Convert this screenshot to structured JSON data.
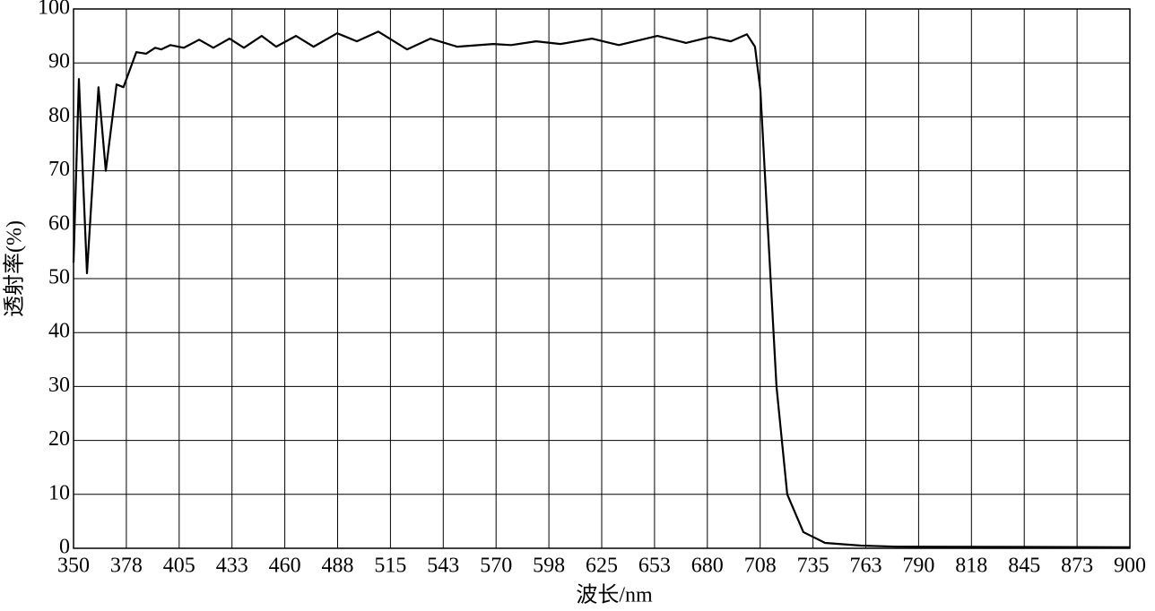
{
  "chart_data": {
    "type": "line",
    "xlabel": "波长/nm",
    "ylabel": "透射率(%)",
    "xlim": [
      350,
      900
    ],
    "xticks": [
      350,
      {
        "value": 377.5,
        "label": "378"
      },
      405,
      {
        "value": 432.5,
        "label": "433"
      },
      460,
      {
        "value": 487.5,
        "label": "488"
      },
      515,
      {
        "value": 542.5,
        "label": "543"
      },
      570,
      {
        "value": 597.5,
        "label": "598"
      },
      625,
      {
        "value": 652.5,
        "label": "653"
      },
      680,
      {
        "value": 707.5,
        "label": "708"
      },
      735,
      {
        "value": 762.5,
        "label": "763"
      },
      790,
      {
        "value": 817.5,
        "label": "818"
      },
      845,
      {
        "value": 872.5,
        "label": "873"
      },
      900
    ],
    "ylim": [
      0,
      100
    ],
    "yticks": [
      0,
      10,
      20,
      30,
      40,
      50,
      60,
      70,
      80,
      90,
      100
    ],
    "grid": true,
    "series": [
      {
        "color": "#000000",
        "x": [
          350,
          352.8,
          357,
          363,
          366.8,
          372.4,
          376,
          382.7,
          387.8,
          392.5,
          395.7,
          400.4,
          407.4,
          415.4,
          422.8,
          431.2,
          438.7,
          448,
          455.5,
          465.8,
          475,
          487.3,
          497.5,
          508.7,
          523.7,
          535.8,
          549.8,
          568.5,
          577.8,
          590.9,
          603.5,
          619.9,
          633.9,
          654,
          668.9,
          681.5,
          692.2,
          700.6,
          704.8,
          707.6,
          711.4,
          716,
          721.6,
          730,
          741.3,
          760,
          778.6,
          900
        ],
        "values": [
          53,
          87,
          51,
          85.5,
          70,
          86,
          85.5,
          92,
          91.7,
          92.8,
          92.5,
          93.3,
          92.8,
          94.3,
          92.8,
          94.5,
          92.8,
          95,
          93,
          95,
          93,
          95.5,
          94,
          95.8,
          92.5,
          94.5,
          93,
          93.5,
          93.3,
          94,
          93.5,
          94.5,
          93.3,
          95,
          93.7,
          94.8,
          94,
          95.3,
          93,
          85,
          60,
          30,
          10,
          3,
          1,
          0.5,
          0.3,
          0.2
        ]
      }
    ]
  }
}
